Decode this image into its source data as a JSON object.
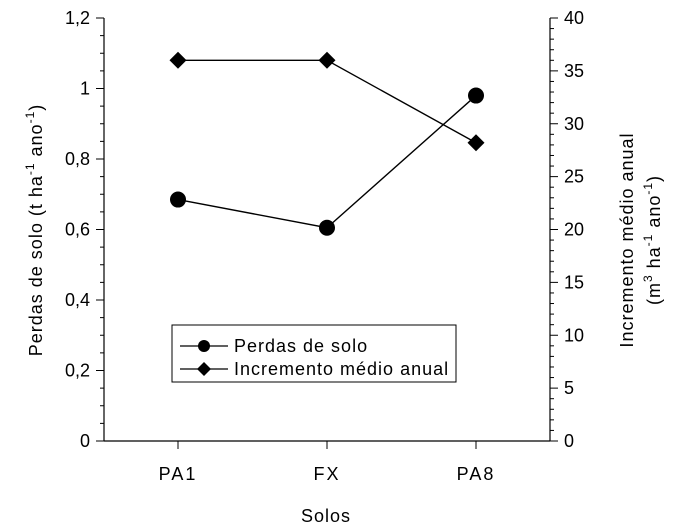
{
  "chart_data": {
    "type": "line",
    "categories": [
      "PA1",
      "FX",
      "PA8"
    ],
    "xlabel": "Solos",
    "ylabel_left": {
      "text": "Perdas de solo (t ha",
      "sup1": "-1",
      "mid": " ano",
      "sup2": "-1",
      "end": ")"
    },
    "ylabel_right": {
      "line1": "Incremento médio anual",
      "line2_a": "(m",
      "line2_sup1": "3",
      "line2_b": " ha",
      "line2_sup2": "-1",
      "line2_c": " ano",
      "line2_sup3": "-1",
      "line2_d": ")"
    },
    "y_left": {
      "lim": [
        0,
        1.2
      ],
      "ticks": [
        0,
        0.2,
        0.4,
        0.6,
        0.8,
        1,
        1.2
      ],
      "tick_labels": [
        "0",
        "0,2",
        "0,4",
        "0,6",
        "0,8",
        "1",
        "1,2"
      ]
    },
    "y_right": {
      "lim": [
        0,
        40
      ],
      "ticks": [
        0,
        5,
        10,
        15,
        20,
        25,
        30,
        35,
        40
      ],
      "tick_labels": [
        "0",
        "5",
        "10",
        "15",
        "20",
        "25",
        "30",
        "35",
        "40"
      ]
    },
    "series": [
      {
        "name": "Perdas de solo",
        "axis": "left",
        "marker": "circle",
        "values": [
          0.685,
          0.605,
          0.98
        ]
      },
      {
        "name": "Incremento médio anual",
        "axis": "right",
        "marker": "diamond",
        "values": [
          36,
          36,
          28.2
        ]
      }
    ],
    "legend_position": "bottom-center",
    "grid": false,
    "colors": {
      "line": "#000000",
      "marker": "#000000",
      "background": "#ffffff"
    }
  }
}
